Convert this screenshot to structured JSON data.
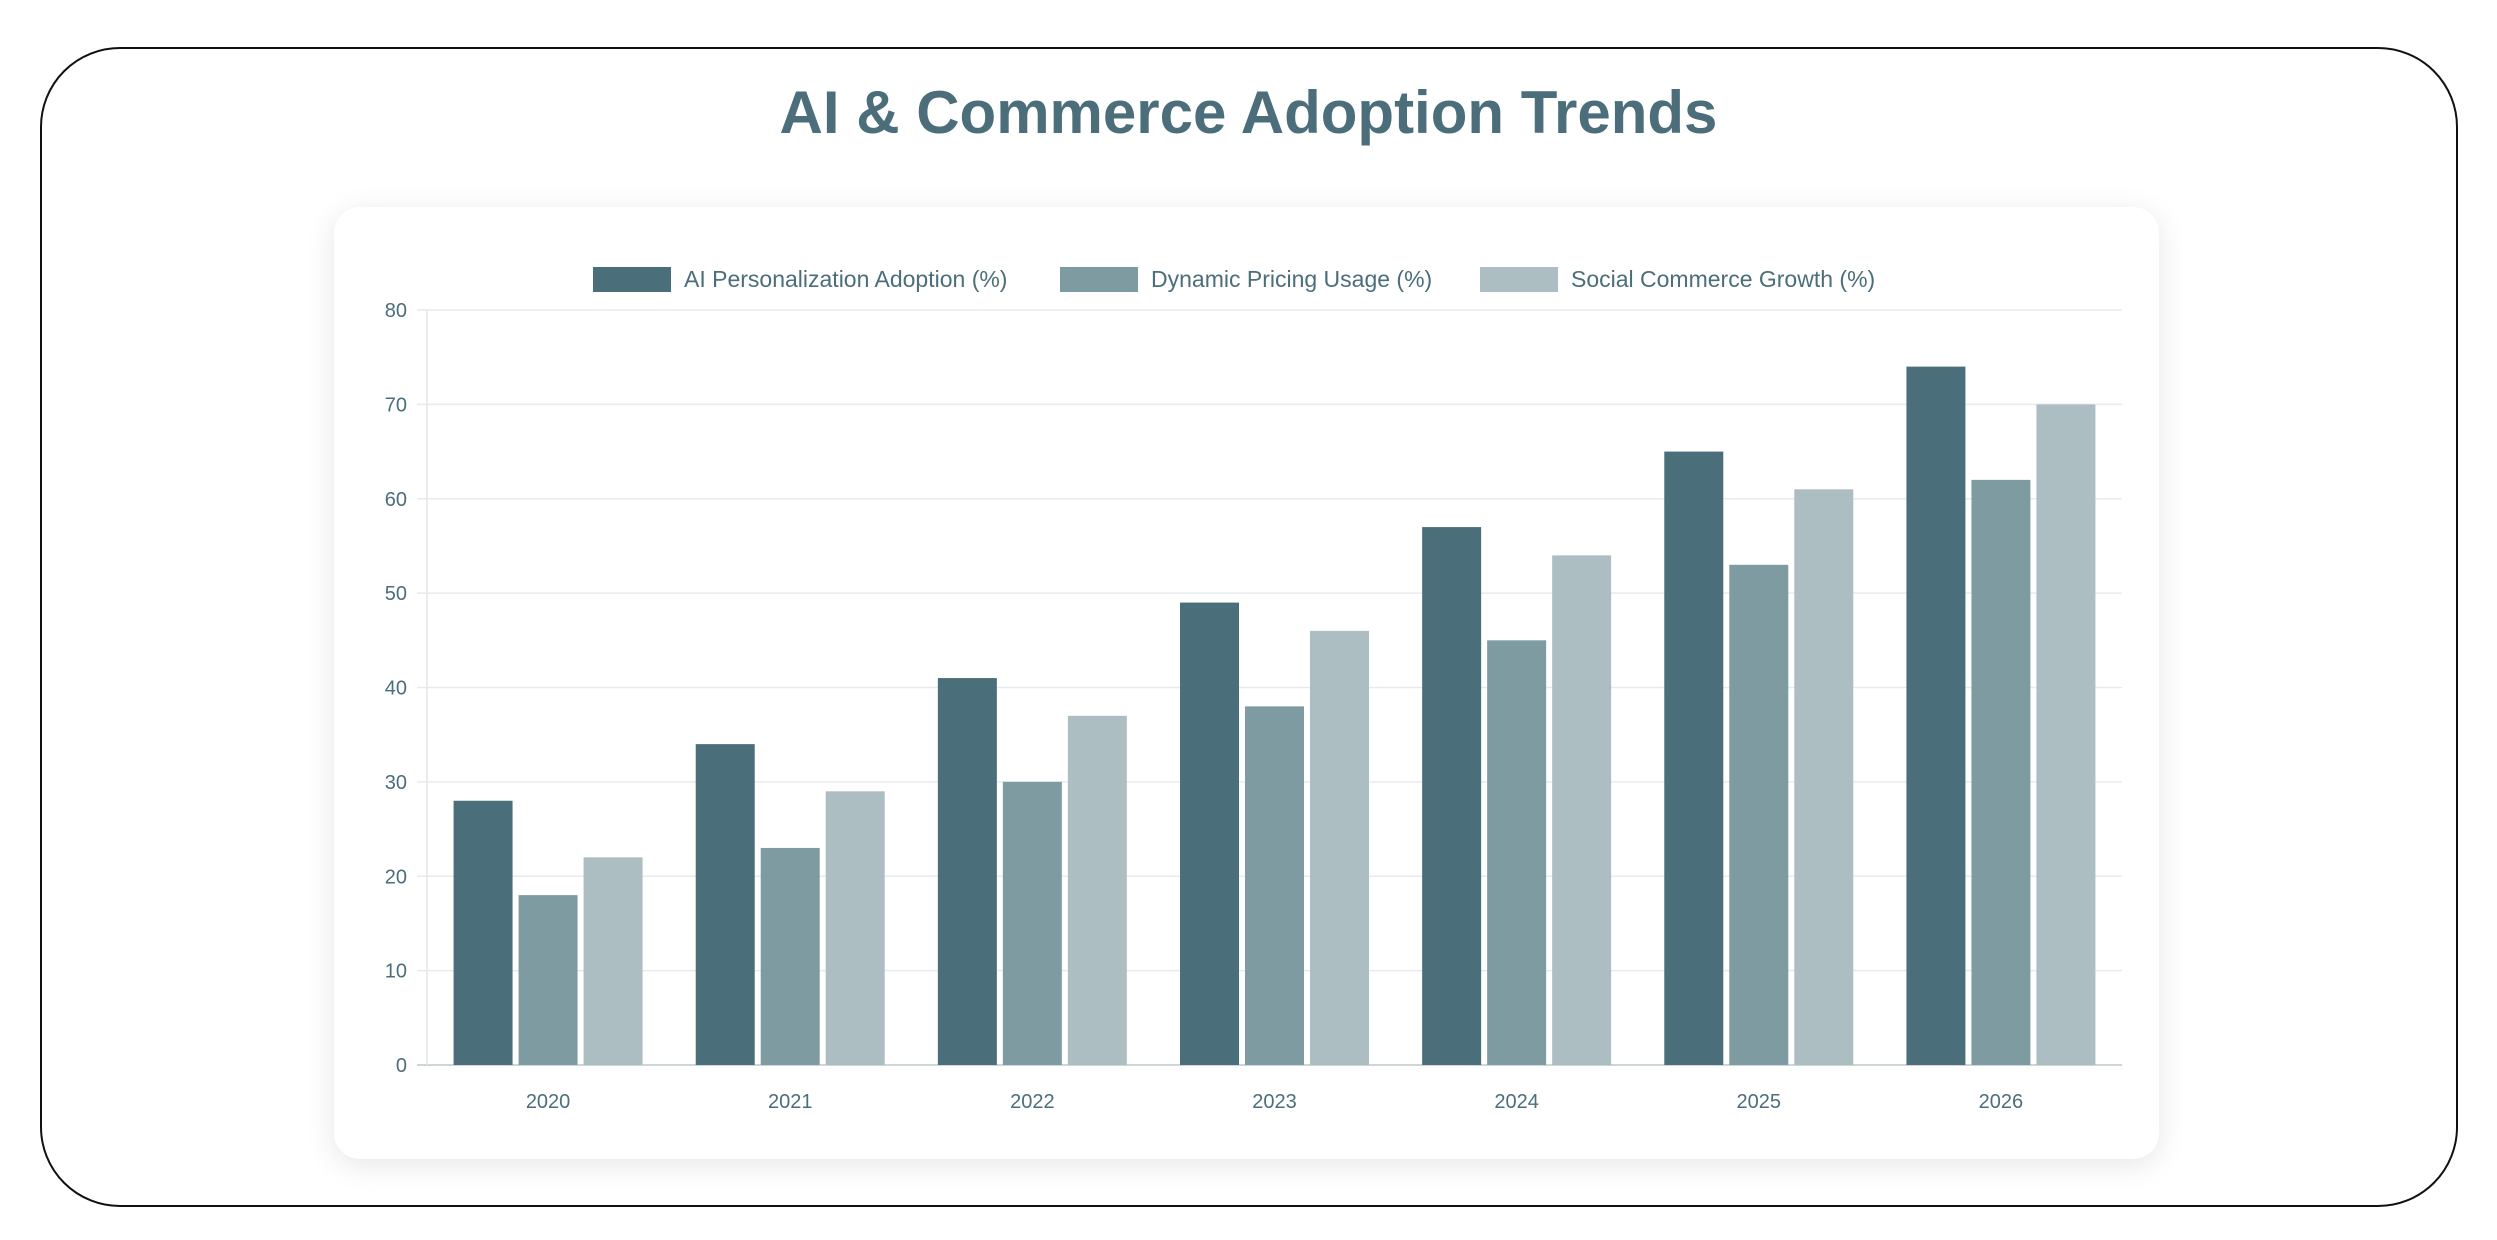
{
  "title": "AI & Commerce Adoption Trends",
  "chart_data": {
    "type": "bar",
    "title": "",
    "xlabel": "",
    "ylabel": "",
    "categories": [
      "2020",
      "2021",
      "2022",
      "2023",
      "2024",
      "2025",
      "2026"
    ],
    "series": [
      {
        "name": "AI Personalization Adoption (%)",
        "color": "#4a6f7b",
        "values": [
          28,
          34,
          41,
          49,
          57,
          65,
          74
        ]
      },
      {
        "name": "Dynamic Pricing Usage (%)",
        "color": "#7f9ba2",
        "values": [
          18,
          23,
          30,
          38,
          45,
          53,
          62
        ]
      },
      {
        "name": "Social Commerce Growth (%)",
        "color": "#adbec2",
        "values": [
          22,
          29,
          37,
          46,
          54,
          61,
          70
        ]
      }
    ],
    "ylim": [
      0,
      80
    ],
    "yticks": [
      "0",
      "10",
      "20",
      "30",
      "40",
      "50",
      "60",
      "70",
      "80"
    ],
    "grid": true,
    "legend": "top"
  }
}
